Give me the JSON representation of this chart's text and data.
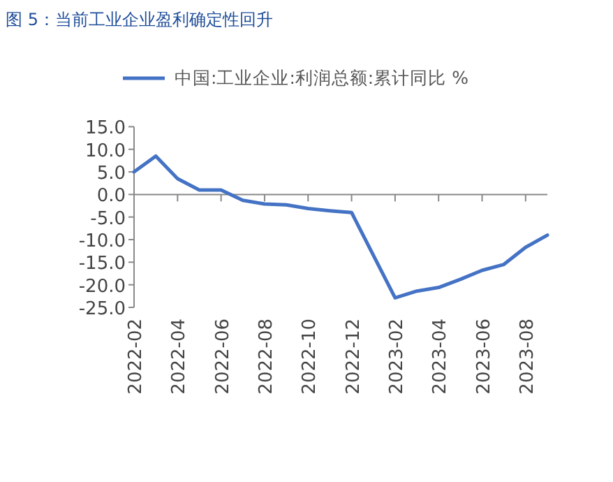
{
  "chart_data": {
    "type": "line",
    "title": "图 5：当前工业企业盈利确定性回升",
    "x": [
      "2022-02",
      "2022-03",
      "2022-04",
      "2022-05",
      "2022-06",
      "2022-07",
      "2022-08",
      "2022-09",
      "2022-10",
      "2022-11",
      "2022-12",
      "2023-02",
      "2023-03",
      "2023-04",
      "2023-05",
      "2023-06",
      "2023-07",
      "2023-08",
      "2023-09"
    ],
    "series": [
      {
        "name": "中国:工业企业:利润总额:累计同比 %",
        "color": "#4472c4",
        "values": [
          5.0,
          8.5,
          3.5,
          1.0,
          1.0,
          -1.3,
          -2.1,
          -2.3,
          -3.1,
          -3.6,
          -4.0,
          -22.9,
          -21.4,
          -20.6,
          -18.8,
          -16.8,
          -15.5,
          -11.7,
          -9.0
        ]
      }
    ],
    "xlim": [
      "2022-02",
      "2023-09"
    ],
    "xticks": [
      "2022-02",
      "2022-04",
      "2022-06",
      "2022-08",
      "2022-10",
      "2022-12",
      "2023-02",
      "2023-04",
      "2023-06",
      "2023-08"
    ],
    "ylim": [
      -25,
      15
    ],
    "yticks": [
      {
        "value": -25,
        "label": "-25.0"
      },
      {
        "value": -20,
        "label": "-20.0"
      },
      {
        "value": -15,
        "label": "-15.0"
      },
      {
        "value": -10,
        "label": "-10.0"
      },
      {
        "value": -5,
        "label": "-5.0"
      },
      {
        "value": 0,
        "label": "0.0"
      },
      {
        "value": 5,
        "label": "5.0"
      },
      {
        "value": 10,
        "label": "10.0"
      },
      {
        "value": 15,
        "label": "15.0"
      }
    ],
    "legend": "top"
  }
}
